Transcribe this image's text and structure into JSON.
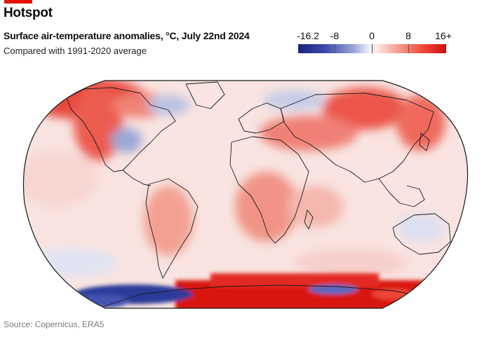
{
  "headline": "Hotspot",
  "title": "Surface air-temperature anomalies, °C, July 22nd 2024",
  "subtitle": "Compared with 1991-2020 average",
  "legend": {
    "ticks": [
      "-16.2",
      "-8",
      "0",
      "8",
      "16+"
    ],
    "range": [
      -16.2,
      16
    ],
    "colors": {
      "cold_extreme": "#1a237e",
      "cold": "#3949ab",
      "neutral": "#eef0f8",
      "warm": "#f7a498",
      "hot": "#ee4a3a",
      "hot_extreme": "#cc0f0c"
    }
  },
  "source": "Source: Copernicus, ERA5",
  "colors": {
    "accent": "#e3120b",
    "ocean_base": "#f9e6e3",
    "coastline": "#1a1a1a"
  }
}
